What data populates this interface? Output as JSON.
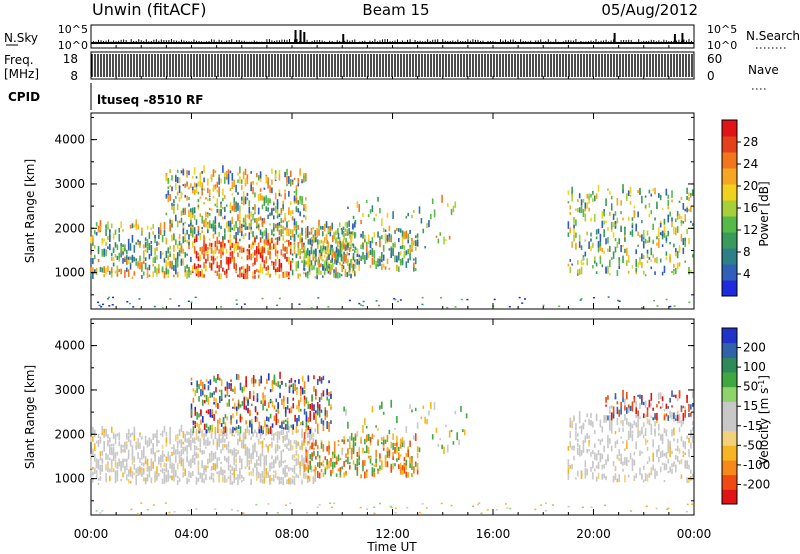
{
  "header": {
    "station": "Unwin (fitACF)",
    "beam": "Beam 15",
    "date": "05/Aug/2012"
  },
  "strips": {
    "nsky_label": "N.Sky",
    "nsky_ticks": [
      "10^5",
      "10^0"
    ],
    "nsearch_label": "N.Search",
    "nsearch_ticks": [
      "10^5",
      "10^0"
    ],
    "freq_label_1": "Freq.",
    "freq_label_2": "[MHz]",
    "freq_ticks": [
      "18",
      "8"
    ],
    "nave_label": "Nave",
    "nave_ticks": [
      "60",
      "0"
    ],
    "cpid_label": "CPID",
    "cpid_value": "ltuseq -8510 RF"
  },
  "chart_data": [
    {
      "type": "heatmap",
      "panel": "power",
      "ylabel": "Slant Range [km]",
      "xlabel": "Time UT",
      "y_ticks": [
        "1000",
        "2000",
        "3000",
        "4000"
      ],
      "ylim": [
        180,
        4600
      ],
      "xlim_hours": [
        0,
        24
      ],
      "colorbar_label": "Power [dB]",
      "colorbar_ticks": [
        "4",
        "8",
        "12",
        "16",
        "20",
        "24",
        "28"
      ],
      "colorbar_colors": [
        "#1e2bdc",
        "#2f5fb8",
        "#2f7f86",
        "#3a9a5c",
        "#57b948",
        "#a6cf3a",
        "#f0d21e",
        "#f5a623",
        "#f2771c",
        "#e4411b",
        "#e01414"
      ],
      "echo_regions": [
        {
          "t_start": "00:00",
          "t_end": "10:30",
          "range_km": [
            900,
            2000
          ]
        },
        {
          "t_start": "03:00",
          "t_end": "08:30",
          "range_km": [
            2000,
            3200
          ]
        },
        {
          "t_start": "08:30",
          "t_end": "13:00",
          "range_km": [
            1000,
            1800
          ]
        },
        {
          "t_start": "19:00",
          "t_end": "24:00",
          "range_km": [
            900,
            2800
          ]
        }
      ]
    },
    {
      "type": "heatmap",
      "panel": "velocity",
      "ylabel": "Slant Range [km]",
      "xlabel": "Time UT",
      "y_ticks": [
        "1000",
        "2000",
        "3000",
        "4000"
      ],
      "ylim": [
        180,
        4600
      ],
      "xlim_hours": [
        0,
        24
      ],
      "colorbar_label": "Velocity [m s",
      "colorbar_label_sup": "-1",
      "colorbar_label_end": "]",
      "colorbar_ticks": [
        "-200",
        "-100",
        "-50",
        "-15",
        "15",
        "50",
        "100",
        "200"
      ],
      "colorbar_colors": [
        "#e01414",
        "#f04a14",
        "#f58a1a",
        "#f6b624",
        "#f3d07a",
        "#c8c8c8",
        "#c8c8c8",
        "#8fd36a",
        "#3fa840",
        "#2f8a5a",
        "#2f62a8",
        "#1e34c8"
      ],
      "echo_regions": [
        {
          "t_start": "00:00",
          "t_end": "09:00",
          "range_km": [
            900,
            2000
          ],
          "note": "mostly ground scatter"
        },
        {
          "t_start": "04:00",
          "t_end": "09:30",
          "range_km": [
            2000,
            3200
          ]
        },
        {
          "t_start": "08:30",
          "t_end": "13:00",
          "range_km": [
            1000,
            1900
          ]
        },
        {
          "t_start": "19:00",
          "t_end": "24:00",
          "range_km": [
            900,
            2800
          ]
        }
      ]
    }
  ],
  "time_axis": {
    "label": "Time UT",
    "ticks": [
      "00:00",
      "04:00",
      "08:00",
      "12:00",
      "16:00",
      "20:00",
      "00:00"
    ]
  }
}
